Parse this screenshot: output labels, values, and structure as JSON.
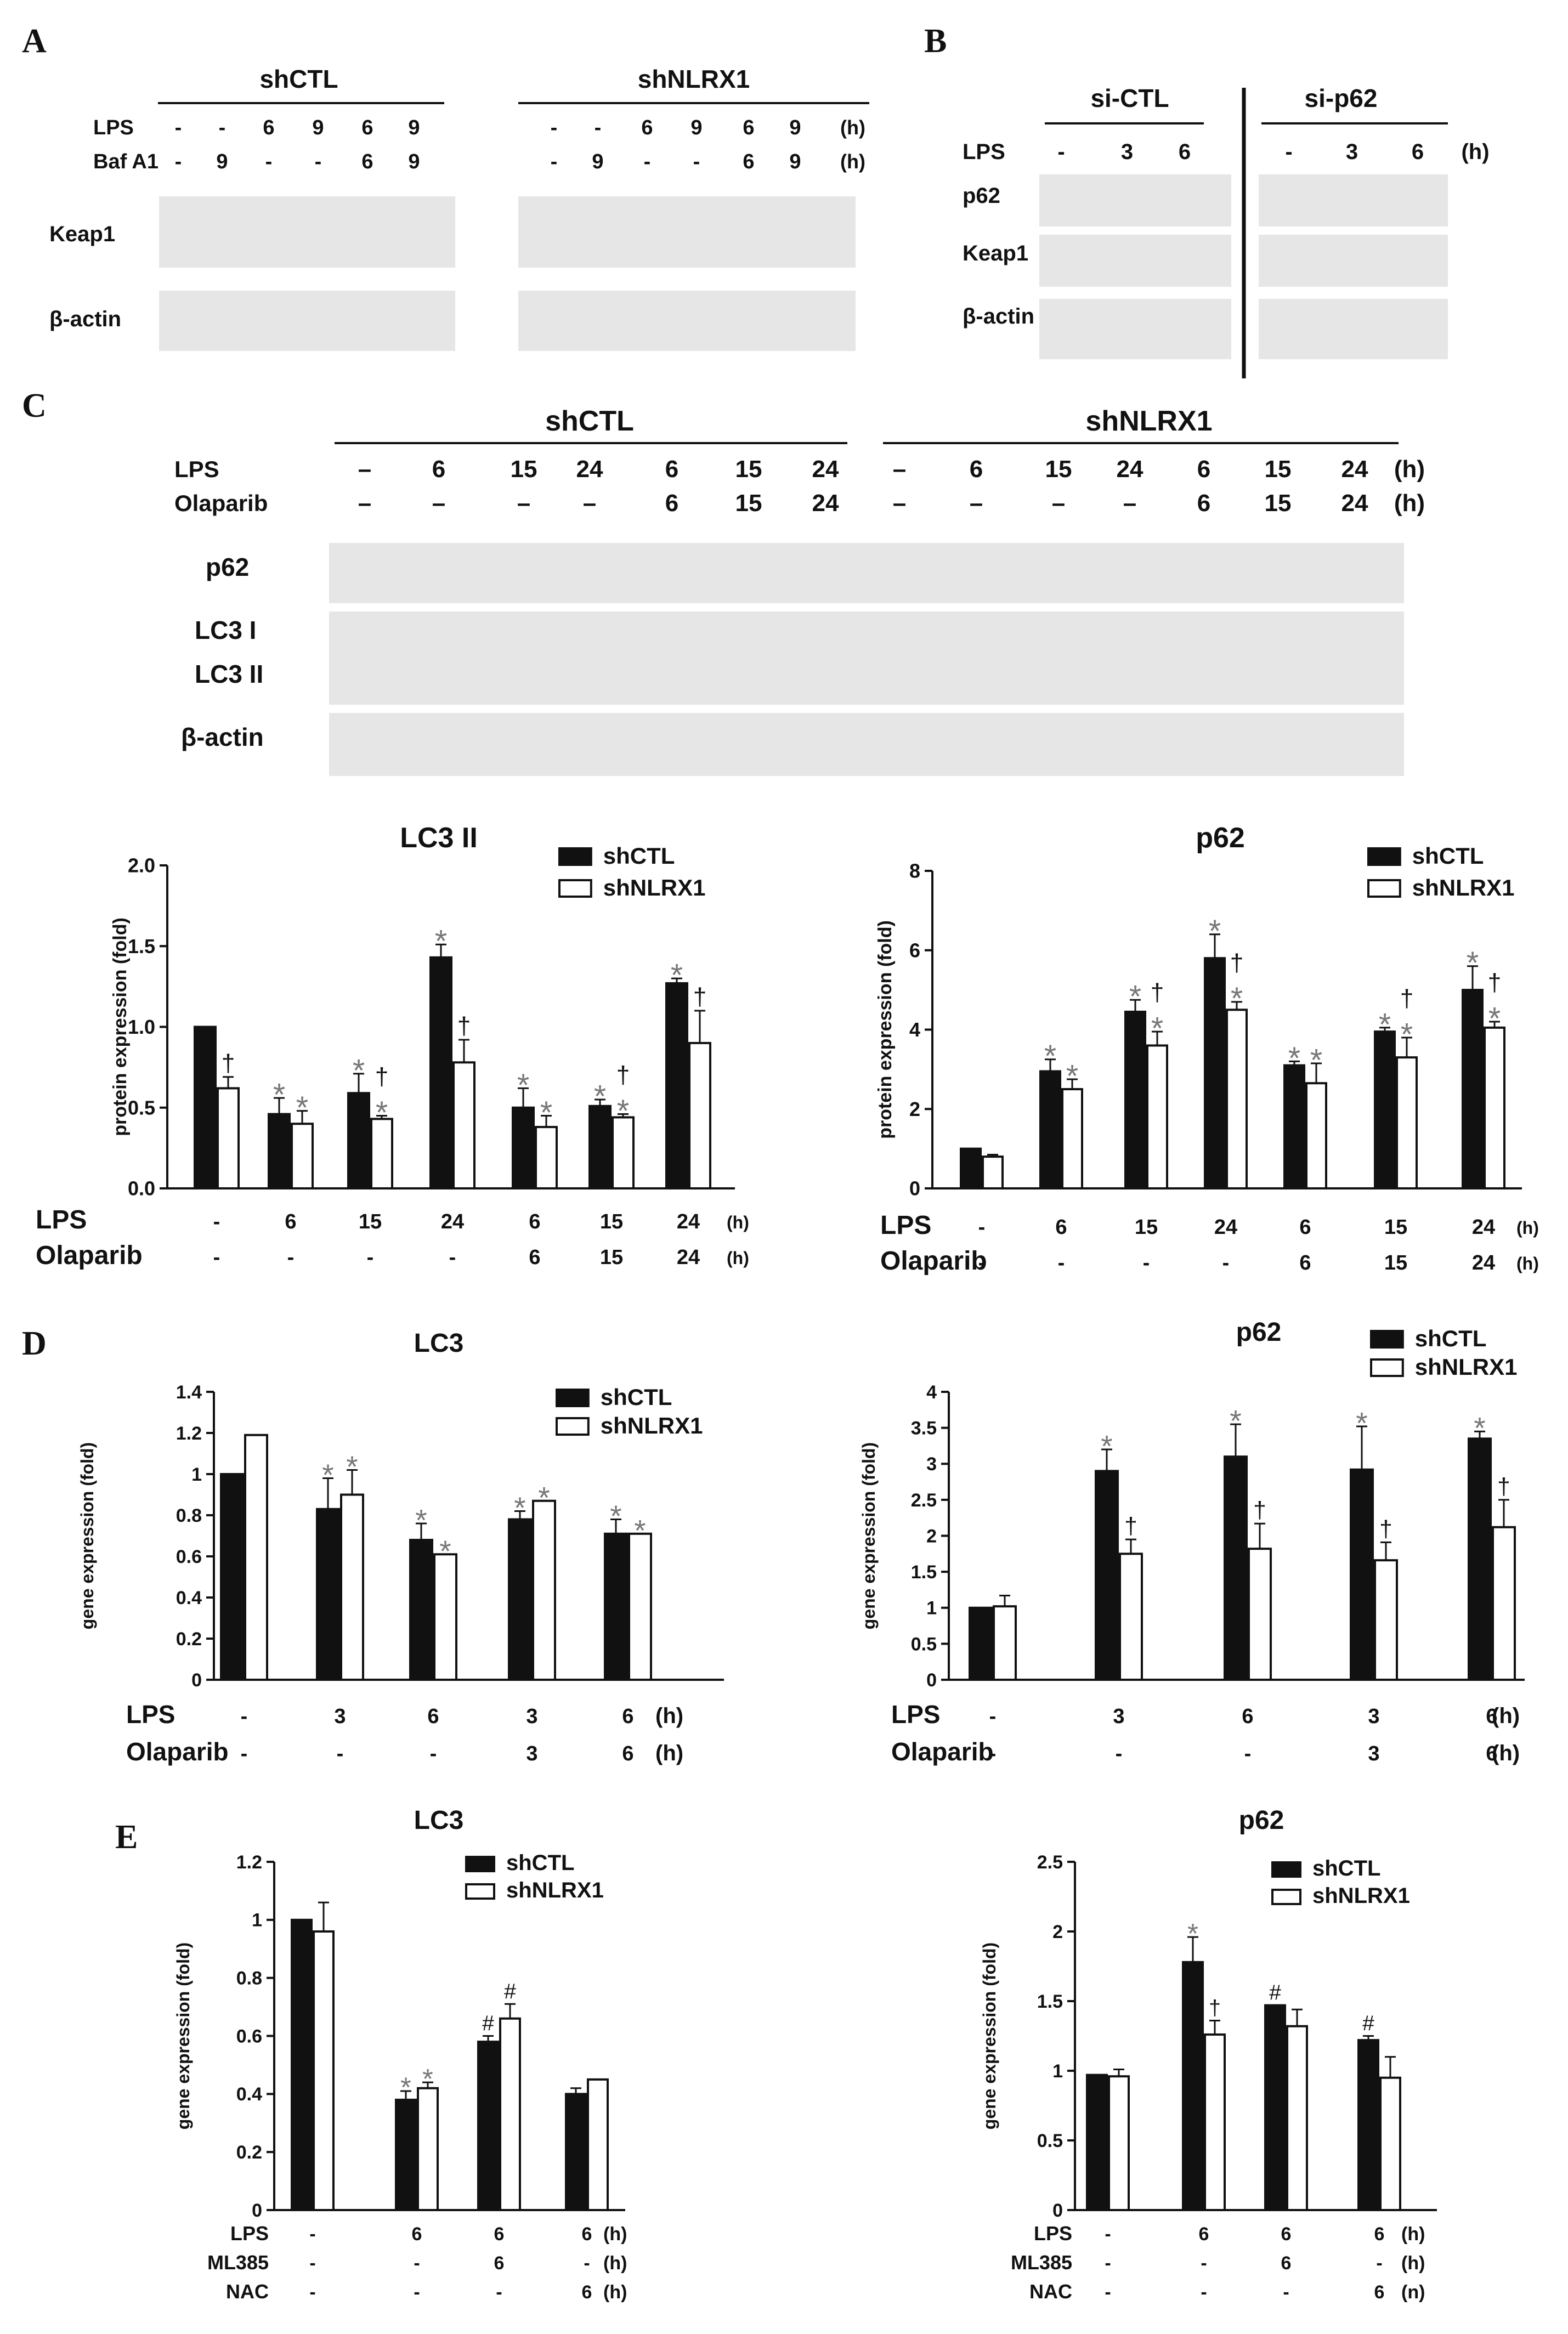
{
  "panelA": {
    "letter": "A",
    "groups": [
      "shCTL",
      "shNLRX1"
    ],
    "rows": [
      {
        "label": "LPS",
        "values": [
          "-",
          "-",
          "6",
          "9",
          "6",
          "9",
          "-",
          "-",
          "6",
          "9",
          "6",
          "9"
        ],
        "unit": "(h)"
      },
      {
        "label": "Baf A1",
        "values": [
          "-",
          "9",
          "-",
          "-",
          "6",
          "9",
          "-",
          "9",
          "-",
          "-",
          "6",
          "9"
        ],
        "unit": "(h)"
      }
    ],
    "blots": [
      "Keap1",
      "β-actin"
    ]
  },
  "panelB": {
    "letter": "B",
    "groups": [
      "si-CTL",
      "si-p62"
    ],
    "row": {
      "label": "LPS",
      "values": [
        "-",
        "3",
        "6",
        "-",
        "3",
        "6"
      ],
      "unit": "(h)"
    },
    "blots": [
      "p62",
      "Keap1",
      "β-actin"
    ]
  },
  "panelC": {
    "letter": "C",
    "groups": [
      "shCTL",
      "shNLRX1"
    ],
    "rows": [
      {
        "label": "LPS",
        "values": [
          "–",
          "6",
          "15",
          "24",
          "6",
          "15",
          "24",
          "–",
          "6",
          "15",
          "24",
          "6",
          "15",
          "24"
        ],
        "unit": "(h)"
      },
      {
        "label": "Olaparib",
        "values": [
          "–",
          "–",
          "–",
          "–",
          "6",
          "15",
          "24",
          "–",
          "–",
          "–",
          "–",
          "6",
          "15",
          "24"
        ],
        "unit": "(h)"
      }
    ],
    "blots": [
      "p62",
      "LC3 I",
      "LC3 II",
      "β-actin"
    ]
  },
  "panelD": {
    "letter": "D"
  },
  "panelE": {
    "letter": "E"
  },
  "legend": {
    "s1": "shCTL",
    "s2": "shNLRX1"
  },
  "chart_data": [
    {
      "id": "c-lc3ii",
      "type": "bar",
      "title": "LC3 II",
      "ylabel": "protein expression (fold)",
      "ylim": [
        0,
        2.0
      ],
      "yticks": [
        "0.0",
        "0.5",
        "1.0",
        "1.5",
        "2.0"
      ],
      "series": [
        {
          "name": "shCTL",
          "color": "#111111",
          "values": [
            1.0,
            0.46,
            0.59,
            1.43,
            0.5,
            0.51,
            1.27
          ],
          "errors": [
            0,
            0.1,
            0.12,
            0.08,
            0.12,
            0.04,
            0.03
          ],
          "marks": [
            "",
            "*",
            "*",
            "*",
            "*",
            "*",
            "*"
          ]
        },
        {
          "name": "shNLRX1",
          "color": "#ffffff",
          "values": [
            0.62,
            0.4,
            0.43,
            0.78,
            0.38,
            0.44,
            0.9
          ],
          "errors": [
            0.07,
            0.08,
            0.02,
            0.14,
            0.07,
            0.02,
            0.2
          ],
          "marks": [
            "†",
            "*",
            "†*",
            "†",
            "*",
            "†*",
            "†"
          ]
        }
      ],
      "xrows": [
        {
          "label": "LPS",
          "values": [
            "-",
            "6",
            "15",
            "24",
            "6",
            "15",
            "24"
          ],
          "unit": "(h)"
        },
        {
          "label": "Olaparib",
          "values": [
            "-",
            "-",
            "-",
            "-",
            "6",
            "15",
            "24"
          ],
          "unit": "(h)"
        }
      ]
    },
    {
      "id": "c-p62",
      "type": "bar",
      "title": "p62",
      "ylabel": "protein expression (fold)",
      "ylim": [
        0,
        8
      ],
      "yticks": [
        "0",
        "2",
        "4",
        "6",
        "8"
      ],
      "series": [
        {
          "name": "shCTL",
          "color": "#111111",
          "values": [
            1.0,
            2.95,
            4.45,
            5.8,
            3.1,
            3.95,
            5.0
          ],
          "errors": [
            0,
            0.3,
            0.3,
            0.6,
            0.1,
            0.1,
            0.6
          ],
          "marks": [
            "",
            "*",
            "*",
            "*",
            "*",
            "*",
            "*"
          ]
        },
        {
          "name": "shNLRX1",
          "color": "#ffffff",
          "values": [
            0.8,
            2.5,
            3.6,
            4.5,
            2.65,
            3.3,
            4.05
          ],
          "errors": [
            0.05,
            0.25,
            0.35,
            0.2,
            0.5,
            0.5,
            0.15
          ],
          "marks": [
            "",
            "*",
            "†*",
            "†*",
            "*",
            "†*",
            "†*"
          ]
        }
      ],
      "xrows": [
        {
          "label": "LPS",
          "values": [
            "-",
            "6",
            "15",
            "24",
            "6",
            "15",
            "24"
          ],
          "unit": "(h)"
        },
        {
          "label": "Olaparib",
          "values": [
            "-",
            "-",
            "-",
            "-",
            "6",
            "15",
            "24"
          ],
          "unit": "(h)"
        }
      ]
    },
    {
      "id": "d-lc3",
      "type": "bar",
      "title": "LC3",
      "ylabel": "gene expression (fold)",
      "ylim": [
        0,
        1.4
      ],
      "yticks": [
        "0",
        "0.2",
        "0.4",
        "0.6",
        "0.8",
        "1",
        "1.2",
        "1.4"
      ],
      "series": [
        {
          "name": "shCTL",
          "color": "#111111",
          "values": [
            1.0,
            0.83,
            0.68,
            0.78,
            0.71
          ],
          "errors": [
            0,
            0.15,
            0.08,
            0.04,
            0.07
          ],
          "marks": [
            "",
            "*",
            "*",
            "*",
            "*"
          ]
        },
        {
          "name": "shNLRX1",
          "color": "#ffffff",
          "values": [
            1.19,
            0.9,
            0.61,
            0.87,
            0.71
          ],
          "errors": [
            0,
            0.12,
            0,
            0,
            0
          ],
          "marks": [
            "",
            "*",
            "*",
            "*",
            "*"
          ]
        }
      ],
      "xrows": [
        {
          "label": "LPS",
          "values": [
            "-",
            "3",
            "6",
            "3",
            "6"
          ],
          "unit": "(h)"
        },
        {
          "label": "Olaparib",
          "values": [
            "-",
            "-",
            "-",
            "3",
            "6"
          ],
          "unit": "(h)"
        }
      ]
    },
    {
      "id": "d-p62",
      "type": "bar",
      "title": "p62",
      "ylabel": "gene expression (fold)",
      "ylim": [
        0,
        4
      ],
      "yticks": [
        "0",
        "0.5",
        "1",
        "1.5",
        "2",
        "2.5",
        "3",
        "3.5",
        "4"
      ],
      "series": [
        {
          "name": "shCTL",
          "color": "#111111",
          "values": [
            1.0,
            2.9,
            3.1,
            2.92,
            3.35
          ],
          "errors": [
            0,
            0.3,
            0.45,
            0.6,
            0.1
          ],
          "marks": [
            "",
            "*",
            "*",
            "*",
            "*"
          ]
        },
        {
          "name": "shNLRX1",
          "color": "#ffffff",
          "values": [
            1.02,
            1.75,
            1.82,
            1.66,
            2.12
          ],
          "errors": [
            0.15,
            0.2,
            0.35,
            0.25,
            0.38
          ],
          "marks": [
            "",
            "†",
            "†",
            "†",
            "†"
          ]
        }
      ],
      "xrows": [
        {
          "label": "LPS",
          "values": [
            "-",
            "3",
            "6",
            "3",
            "6"
          ],
          "unit": "(h)"
        },
        {
          "label": "Olaparib",
          "values": [
            "-",
            "-",
            "-",
            "3",
            "6"
          ],
          "unit": "(h)"
        }
      ]
    },
    {
      "id": "e-lc3",
      "type": "bar",
      "title": "LC3",
      "ylabel": "gene expression (fold)",
      "ylim": [
        0,
        1.2
      ],
      "yticks": [
        "0",
        "0.2",
        "0.4",
        "0.6",
        "0.8",
        "1",
        "1.2"
      ],
      "series": [
        {
          "name": "shCTL",
          "color": "#111111",
          "values": [
            1.0,
            0.38,
            0.58,
            0.4
          ],
          "errors": [
            0,
            0.03,
            0.02,
            0.02
          ],
          "marks": [
            "",
            "*",
            "#",
            ""
          ]
        },
        {
          "name": "shNLRX1",
          "color": "#ffffff",
          "values": [
            0.96,
            0.42,
            0.66,
            0.45
          ],
          "errors": [
            0.1,
            0.02,
            0.05,
            0
          ],
          "marks": [
            "",
            "*",
            "#",
            ""
          ]
        }
      ],
      "xrows": [
        {
          "label": "LPS",
          "values": [
            "-",
            "6",
            "6",
            "6"
          ],
          "unit": "(h)"
        },
        {
          "label": "ML385",
          "values": [
            "-",
            "-",
            "6",
            "-"
          ],
          "unit": "(h)"
        },
        {
          "label": "NAC",
          "values": [
            "-",
            "-",
            "-",
            "6"
          ],
          "unit": "(h)"
        }
      ]
    },
    {
      "id": "e-p62",
      "type": "bar",
      "title": "p62",
      "ylabel": "gene expression (fold)",
      "ylim": [
        0,
        2.5
      ],
      "yticks": [
        "0",
        "0.5",
        "1",
        "1.5",
        "2",
        "2.5"
      ],
      "series": [
        {
          "name": "shCTL",
          "color": "#111111",
          "values": [
            0.97,
            1.78,
            1.47,
            1.22
          ],
          "errors": [
            0,
            0.18,
            0,
            0.03
          ],
          "marks": [
            "",
            "*",
            "#",
            "#"
          ]
        },
        {
          "name": "shNLRX1",
          "color": "#ffffff",
          "values": [
            0.96,
            1.26,
            1.32,
            0.95
          ],
          "errors": [
            0.05,
            0.1,
            0.12,
            0.15
          ],
          "marks": [
            "",
            "†",
            "",
            ""
          ]
        }
      ],
      "xrows": [
        {
          "label": "LPS",
          "values": [
            "-",
            "6",
            "6",
            "6"
          ],
          "unit": "(h)"
        },
        {
          "label": "ML385",
          "values": [
            "-",
            "-",
            "6",
            "-"
          ],
          "unit": "(h)"
        },
        {
          "label": "NAC",
          "values": [
            "-",
            "-",
            "-",
            "6"
          ],
          "unit": "(n)"
        }
      ]
    }
  ]
}
